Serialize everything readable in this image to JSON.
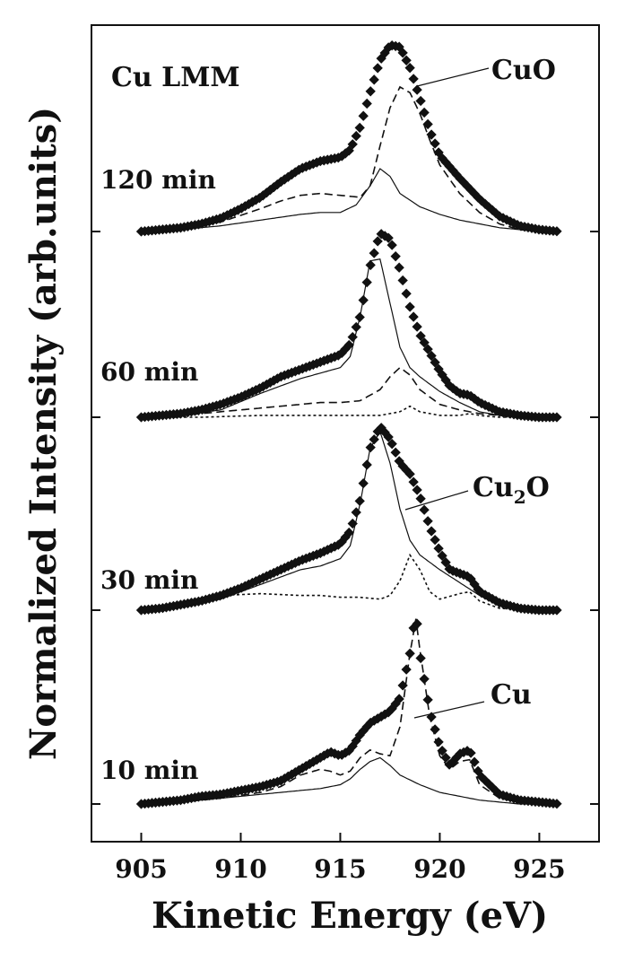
{
  "chart_data": {
    "type": "line",
    "title": "Cu LMM",
    "xlabel": "Kinetic Energy (eV)",
    "ylabel": "Normalized Intensity (arb.units)",
    "xlim": [
      902.5,
      928.0
    ],
    "xticks": [
      "905",
      "910",
      "915",
      "920",
      "925"
    ],
    "grid": false,
    "legend": "none",
    "panels": [
      {
        "label": "120 min",
        "series": [
          {
            "style": "markers",
            "x": [
              905,
              906,
              907,
              908,
              909,
              910,
              911,
              912,
              913,
              914,
              915,
              915.5,
              916,
              916.5,
              917,
              917.5,
              918,
              918.5,
              919,
              919.5,
              920,
              921,
              922,
              923,
              924,
              925,
              926
            ],
            "y": [
              0.0,
              0.01,
              0.02,
              0.04,
              0.07,
              0.12,
              0.18,
              0.26,
              0.33,
              0.37,
              0.39,
              0.43,
              0.55,
              0.73,
              0.9,
              0.98,
              0.97,
              0.86,
              0.7,
              0.53,
              0.4,
              0.28,
              0.17,
              0.08,
              0.03,
              0.01,
              0.0
            ]
          },
          {
            "style": "solid",
            "x": [
              905,
              907,
              909,
              911,
              913,
              914,
              915,
              915.8,
              916.5,
              917,
              917.5,
              918,
              919,
              920,
              921,
              922,
              923,
              924,
              925,
              926
            ],
            "y": [
              0.0,
              0.01,
              0.03,
              0.06,
              0.09,
              0.1,
              0.1,
              0.14,
              0.24,
              0.33,
              0.29,
              0.2,
              0.13,
              0.09,
              0.06,
              0.04,
              0.02,
              0.01,
              0.0,
              0.0
            ]
          },
          {
            "style": "dashed",
            "x": [
              905,
              907,
              909,
              911,
              912,
              913,
              914,
              915,
              916,
              916.5,
              917,
              917.5,
              918,
              918.5,
              919,
              919.5,
              920,
              921,
              922,
              923,
              924,
              925,
              926
            ],
            "y": [
              0.0,
              0.02,
              0.05,
              0.12,
              0.16,
              0.19,
              0.2,
              0.19,
              0.18,
              0.24,
              0.45,
              0.65,
              0.76,
              0.73,
              0.62,
              0.48,
              0.35,
              0.2,
              0.1,
              0.04,
              0.01,
              0.0,
              0.0
            ]
          }
        ]
      },
      {
        "label": "60 min",
        "series": [
          {
            "style": "markers",
            "x": [
              905,
              906,
              907,
              908,
              909,
              910,
              911,
              912,
              913,
              914,
              915,
              915.5,
              916,
              916.5,
              917,
              917.5,
              918,
              918.5,
              919,
              919.5,
              920,
              920.5,
              921,
              921.5,
              922,
              923,
              924,
              925,
              926
            ],
            "y": [
              0.0,
              0.01,
              0.02,
              0.04,
              0.07,
              0.11,
              0.16,
              0.22,
              0.26,
              0.3,
              0.34,
              0.4,
              0.55,
              0.82,
              1.0,
              0.97,
              0.8,
              0.6,
              0.45,
              0.35,
              0.25,
              0.17,
              0.13,
              0.12,
              0.08,
              0.03,
              0.01,
              0.0,
              0.0
            ]
          },
          {
            "style": "solid",
            "x": [
              905,
              907,
              909,
              911,
              913,
              914,
              915,
              915.5,
              916,
              916.5,
              917,
              917.5,
              918,
              918.5,
              919,
              920,
              921,
              922,
              923,
              924,
              925,
              926
            ],
            "y": [
              0.0,
              0.01,
              0.04,
              0.13,
              0.21,
              0.24,
              0.27,
              0.33,
              0.55,
              0.85,
              0.86,
              0.62,
              0.38,
              0.27,
              0.22,
              0.14,
              0.08,
              0.03,
              0.01,
              0.0,
              0.0,
              0.0
            ]
          },
          {
            "style": "dashed",
            "x": [
              905,
              907,
              909,
              911,
              913,
              914,
              915,
              916,
              917,
              917.5,
              918,
              918.5,
              919,
              920,
              921,
              922,
              923,
              924,
              925,
              926
            ],
            "y": [
              0.0,
              0.01,
              0.03,
              0.05,
              0.07,
              0.08,
              0.08,
              0.09,
              0.15,
              0.22,
              0.27,
              0.23,
              0.15,
              0.07,
              0.04,
              0.02,
              0.01,
              0.0,
              0.0,
              0.0
            ]
          },
          {
            "style": "dotted",
            "x": [
              905,
              908,
              911,
              914,
              916,
              917,
              918,
              918.5,
              919,
              920,
              921,
              921.5,
              922,
              923,
              925,
              926
            ],
            "y": [
              0.0,
              0.0,
              0.01,
              0.01,
              0.01,
              0.01,
              0.03,
              0.06,
              0.03,
              0.01,
              0.01,
              0.02,
              0.01,
              0.0,
              0.0,
              0.0
            ]
          }
        ]
      },
      {
        "label": "30 min",
        "series": [
          {
            "style": "markers",
            "x": [
              905,
              906,
              907,
              908,
              909,
              910,
              911,
              912,
              913,
              914,
              915,
              915.5,
              916,
              916.5,
              917,
              917.5,
              918,
              918.5,
              919,
              919.5,
              920,
              920.5,
              921,
              921.5,
              922,
              923,
              924,
              925,
              926
            ],
            "y": [
              0.0,
              0.01,
              0.03,
              0.05,
              0.08,
              0.12,
              0.17,
              0.22,
              0.27,
              0.31,
              0.36,
              0.43,
              0.6,
              0.88,
              1.0,
              0.93,
              0.8,
              0.74,
              0.62,
              0.45,
              0.32,
              0.22,
              0.2,
              0.18,
              0.1,
              0.04,
              0.01,
              0.0,
              0.0
            ]
          },
          {
            "style": "solid",
            "x": [
              905,
              907,
              909,
              911,
              913,
              914,
              915,
              915.5,
              916,
              916.5,
              917,
              917.5,
              918,
              918.5,
              919,
              920,
              921,
              922,
              923,
              924,
              925,
              926
            ],
            "y": [
              0.0,
              0.02,
              0.06,
              0.14,
              0.22,
              0.24,
              0.28,
              0.35,
              0.58,
              0.88,
              0.97,
              0.8,
              0.55,
              0.38,
              0.3,
              0.22,
              0.15,
              0.08,
              0.03,
              0.01,
              0.0,
              0.0
            ]
          },
          {
            "style": "dotted",
            "x": [
              905,
              907,
              909,
              911,
              913,
              914,
              915,
              916,
              917,
              917.5,
              918,
              918.5,
              919,
              919.5,
              920,
              921,
              921.5,
              922,
              923,
              925,
              926
            ],
            "y": [
              0.0,
              0.04,
              0.08,
              0.09,
              0.08,
              0.08,
              0.07,
              0.07,
              0.06,
              0.08,
              0.16,
              0.3,
              0.22,
              0.1,
              0.06,
              0.09,
              0.1,
              0.05,
              0.01,
              0.0,
              0.0
            ]
          }
        ]
      },
      {
        "label": "10 min",
        "series": [
          {
            "style": "markers",
            "x": [
              905,
              906,
              907,
              908,
              909,
              910,
              911,
              912,
              913,
              914,
              914.5,
              915,
              915.5,
              916,
              916.5,
              917,
              917.5,
              918,
              918.5,
              918.8,
              919,
              919.5,
              920,
              920.5,
              921,
              921.5,
              922,
              923,
              924,
              925,
              926
            ],
            "y": [
              0.0,
              0.01,
              0.02,
              0.04,
              0.05,
              0.07,
              0.09,
              0.12,
              0.18,
              0.24,
              0.27,
              0.25,
              0.28,
              0.36,
              0.42,
              0.45,
              0.48,
              0.55,
              0.78,
              1.0,
              0.78,
              0.48,
              0.3,
              0.2,
              0.26,
              0.28,
              0.15,
              0.05,
              0.02,
              0.01,
              0.0
            ]
          },
          {
            "style": "solid",
            "x": [
              905,
              907,
              909,
              911,
              913,
              914,
              915,
              915.5,
              916,
              916.5,
              917,
              917.5,
              918,
              919,
              920,
              921,
              922,
              923,
              924,
              925,
              926
            ],
            "y": [
              0.0,
              0.01,
              0.03,
              0.05,
              0.07,
              0.08,
              0.1,
              0.13,
              0.18,
              0.22,
              0.24,
              0.2,
              0.15,
              0.1,
              0.06,
              0.04,
              0.02,
              0.01,
              0.0,
              0.0,
              0.0
            ]
          },
          {
            "style": "dashed",
            "x": [
              905,
              907,
              909,
              911,
              912,
              913,
              914,
              914.5,
              915,
              915.5,
              916,
              916.5,
              917,
              917.5,
              918,
              918.5,
              918.8,
              919,
              919.5,
              920,
              920.5,
              921,
              921.5,
              922,
              923,
              924,
              925,
              926
            ],
            "y": [
              0.0,
              0.01,
              0.03,
              0.06,
              0.09,
              0.15,
              0.18,
              0.17,
              0.15,
              0.17,
              0.24,
              0.28,
              0.26,
              0.25,
              0.4,
              0.78,
              0.96,
              0.8,
              0.45,
              0.25,
              0.18,
              0.22,
              0.23,
              0.1,
              0.03,
              0.01,
              0.0,
              0.0
            ]
          }
        ]
      }
    ],
    "annotations": [
      {
        "text": "CuO",
        "panel": 0
      },
      {
        "text": "Cu",
        "sub": "2",
        "text2": "O",
        "panel": 2
      },
      {
        "text": "Cu",
        "panel": 3
      }
    ]
  }
}
